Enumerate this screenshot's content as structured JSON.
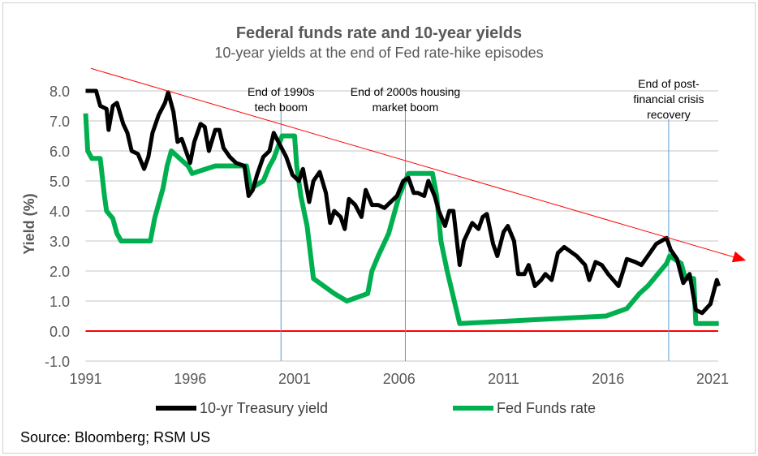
{
  "chart_data": {
    "type": "line",
    "title": "Federal funds rate and 10-year yields",
    "subtitle": "10-year yields at the end of Fed rate-hike episodes",
    "ylabel": "Yield (%)",
    "xlabel": "",
    "ylim": [
      -1,
      8
    ],
    "xlim": [
      1991,
      2021.3
    ],
    "yticks": [
      "-1.0",
      "0.0",
      "1.0",
      "2.0",
      "3.0",
      "4.0",
      "5.0",
      "6.0",
      "7.0",
      "8.0"
    ],
    "xticks": [
      "1991",
      "1996",
      "2001",
      "2006",
      "2011",
      "2016",
      "2021"
    ],
    "grid": true,
    "legend": "bottom",
    "source": "Source: Bloomberg; RSM US",
    "colors": {
      "treasury": "#000000",
      "fedfunds": "#00B050",
      "trend": "#FF0000",
      "zero": "#FF0000",
      "event": "#5B9BD5",
      "grid": "#D9D9D9"
    },
    "series": [
      {
        "name": "10-yr Treasury yield",
        "x": [
          1991.0,
          1991.5,
          1991.7,
          1992.0,
          1992.1,
          1992.3,
          1992.5,
          1992.8,
          1993.0,
          1993.2,
          1993.5,
          1993.8,
          1994.0,
          1994.2,
          1994.5,
          1994.8,
          1994.95,
          1995.2,
          1995.4,
          1995.6,
          1995.8,
          1996.0,
          1996.2,
          1996.5,
          1996.7,
          1996.9,
          1997.2,
          1997.4,
          1997.6,
          1997.9,
          1998.2,
          1998.6,
          1998.8,
          1999.0,
          1999.2,
          1999.5,
          1999.8,
          2000.0,
          2000.3,
          2000.6,
          2000.9,
          2001.2,
          2001.4,
          2001.7,
          2001.9,
          2002.2,
          2002.5,
          2002.7,
          2002.9,
          2003.2,
          2003.4,
          2003.6,
          2003.9,
          2004.2,
          2004.4,
          2004.7,
          2005.0,
          2005.3,
          2005.6,
          2005.9,
          2006.2,
          2006.45,
          2006.7,
          2006.9,
          2007.2,
          2007.4,
          2007.7,
          2007.9,
          2008.2,
          2008.4,
          2008.6,
          2008.9,
          2009.1,
          2009.5,
          2009.8,
          2010.0,
          2010.2,
          2010.5,
          2010.7,
          2011.0,
          2011.2,
          2011.5,
          2011.7,
          2012.0,
          2012.2,
          2012.5,
          2012.8,
          2013.0,
          2013.3,
          2013.6,
          2013.9,
          2014.1,
          2014.5,
          2014.9,
          2015.1,
          2015.4,
          2015.7,
          2016.0,
          2016.5,
          2016.9,
          2017.3,
          2017.6,
          2018.0,
          2018.3,
          2018.8,
          2019.0,
          2019.3,
          2019.6,
          2019.9,
          2020.2,
          2020.5,
          2020.9,
          2021.2,
          2021.3
        ],
        "values": [
          8.0,
          8.0,
          7.5,
          7.4,
          6.7,
          7.5,
          7.6,
          6.9,
          6.6,
          6.0,
          5.9,
          5.4,
          5.8,
          6.6,
          7.2,
          7.6,
          7.95,
          7.3,
          6.3,
          6.4,
          6.0,
          5.6,
          6.3,
          6.9,
          6.8,
          6.0,
          6.7,
          6.7,
          6.1,
          5.8,
          5.6,
          5.5,
          4.5,
          4.7,
          5.2,
          5.8,
          6.0,
          6.6,
          6.2,
          5.8,
          5.2,
          5.0,
          5.4,
          4.3,
          5.0,
          5.3,
          4.6,
          3.6,
          4.0,
          3.8,
          3.4,
          4.4,
          4.2,
          3.8,
          4.7,
          4.2,
          4.2,
          4.1,
          4.3,
          4.5,
          5.0,
          5.1,
          4.6,
          4.6,
          4.5,
          5.0,
          4.5,
          4.0,
          3.5,
          4.0,
          4.0,
          2.2,
          3.0,
          3.6,
          3.4,
          3.8,
          3.9,
          2.9,
          2.5,
          3.3,
          3.5,
          3.0,
          1.9,
          1.9,
          2.2,
          1.5,
          1.7,
          1.9,
          1.7,
          2.6,
          2.8,
          2.7,
          2.5,
          2.2,
          1.7,
          2.3,
          2.2,
          1.9,
          1.5,
          2.4,
          2.3,
          2.2,
          2.6,
          2.9,
          3.1,
          2.7,
          2.4,
          1.6,
          1.9,
          0.7,
          0.6,
          0.9,
          1.7,
          1.5
        ]
      },
      {
        "name": "Fed Funds rate",
        "step": true,
        "x": [
          1991.0,
          1991.1,
          1991.3,
          1991.7,
          1991.9,
          1992.0,
          1992.3,
          1992.5,
          1992.7,
          1994.1,
          1994.3,
          1994.5,
          1994.7,
          1994.9,
          1995.1,
          1995.5,
          1995.9,
          1996.1,
          1997.2,
          1998.7,
          1998.9,
          1999.5,
          1999.8,
          2000.0,
          2000.4,
          2001.0,
          2001.1,
          2001.3,
          2001.6,
          2001.9,
          2002.9,
          2003.5,
          2004.5,
          2004.7,
          2005.0,
          2005.5,
          2006.0,
          2006.45,
          2007.6,
          2007.8,
          2008.0,
          2008.3,
          2008.9,
          2015.9,
          2016.9,
          2017.2,
          2017.5,
          2017.9,
          2018.2,
          2018.5,
          2018.8,
          2018.95,
          2019.5,
          2019.7,
          2020.1,
          2020.2,
          2021.3
        ],
        "values": [
          7.25,
          6.0,
          5.75,
          5.75,
          4.5,
          4.0,
          3.75,
          3.25,
          3.0,
          3.0,
          3.75,
          4.25,
          4.75,
          5.5,
          6.0,
          5.75,
          5.5,
          5.25,
          5.5,
          5.5,
          4.75,
          5.0,
          5.5,
          5.75,
          6.5,
          6.5,
          5.5,
          4.5,
          3.5,
          1.75,
          1.25,
          1.0,
          1.25,
          2.0,
          2.5,
          3.25,
          4.5,
          5.25,
          5.25,
          4.5,
          3.0,
          2.0,
          0.25,
          0.5,
          0.75,
          1.0,
          1.25,
          1.5,
          1.75,
          2.0,
          2.25,
          2.5,
          2.25,
          1.75,
          1.75,
          0.25,
          0.25
        ]
      }
    ],
    "trendline": {
      "x": [
        1991.25,
        2022.6
      ],
      "y": [
        8.75,
        2.35
      ]
    },
    "annotations": [
      {
        "x": 2000.35,
        "lines": [
          "End of 1990s",
          "tech boom"
        ]
      },
      {
        "x": 2006.3,
        "lines": [
          "End of 2000s housing",
          "market boom"
        ]
      },
      {
        "x": 2018.9,
        "lines": [
          "End of post-",
          "financial crisis",
          "recovery"
        ]
      }
    ]
  }
}
